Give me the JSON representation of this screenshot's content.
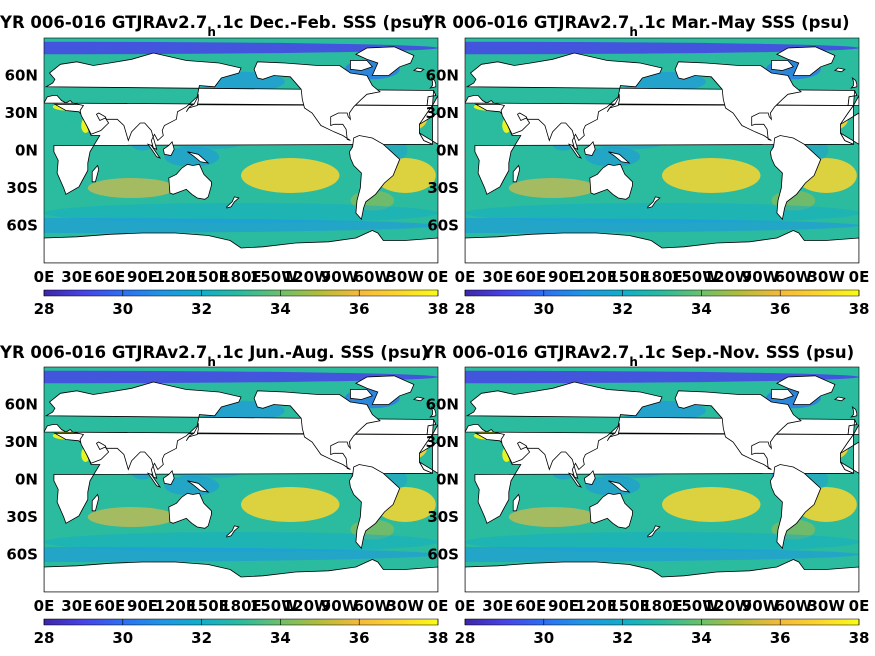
{
  "chart_data": [
    {
      "type": "heatmap",
      "variable": "SSS",
      "title_pre": "YR 006-016 GTJRAv2.7",
      "title_sub": "h",
      "title_post": ".1c Dec.-Feb. SSS (psu)",
      "lon_ticks": [
        "0E",
        "30E",
        "60E",
        "90E",
        "120E",
        "150E",
        "180E",
        "150W",
        "120W",
        "90W",
        "60W",
        "30W",
        "0E"
      ],
      "lat_ticks": [
        "60N",
        "30N",
        "0N",
        "30S",
        "60S"
      ],
      "colorbar": {
        "ticks": [
          "28",
          "30",
          "32",
          "34",
          "36",
          "38"
        ],
        "range": [
          28,
          38
        ]
      }
    },
    {
      "type": "heatmap",
      "variable": "SSS",
      "title_pre": "YR 006-016 GTJRAv2.7",
      "title_sub": "h",
      "title_post": ".1c Mar.-May SSS (psu)",
      "lon_ticks": [
        "0E",
        "30E",
        "60E",
        "90E",
        "120E",
        "150E",
        "180E",
        "150W",
        "120W",
        "90W",
        "60W",
        "30W",
        "0E"
      ],
      "lat_ticks": [
        "60N",
        "30N",
        "0N",
        "30S",
        "60S"
      ],
      "colorbar": {
        "ticks": [
          "28",
          "30",
          "32",
          "34",
          "36",
          "38"
        ],
        "range": [
          28,
          38
        ]
      }
    },
    {
      "type": "heatmap",
      "variable": "SSS",
      "title_pre": "YR 006-016 GTJRAv2.7",
      "title_sub": "h",
      "title_post": ".1c Jun.-Aug. SSS (psu)",
      "lon_ticks": [
        "0E",
        "30E",
        "60E",
        "90E",
        "120E",
        "150E",
        "180E",
        "150W",
        "120W",
        "90W",
        "60W",
        "30W",
        "0E"
      ],
      "lat_ticks": [
        "60N",
        "30N",
        "0N",
        "30S",
        "60S"
      ],
      "colorbar": {
        "ticks": [
          "28",
          "30",
          "32",
          "34",
          "36",
          "38"
        ],
        "range": [
          28,
          38
        ]
      }
    },
    {
      "type": "heatmap",
      "variable": "SSS",
      "title_pre": "YR 006-016 GTJRAv2.7",
      "title_sub": "h",
      "title_post": ".1c Sep.-Nov. SSS (psu)",
      "lon_ticks": [
        "0E",
        "30E",
        "60E",
        "90E",
        "120E",
        "150E",
        "180E",
        "150W",
        "120W",
        "90W",
        "60W",
        "30W",
        "0E"
      ],
      "lat_ticks": [
        "60N",
        "30N",
        "0N",
        "30S",
        "60S"
      ],
      "colorbar": {
        "ticks": [
          "28",
          "30",
          "32",
          "34",
          "36",
          "38"
        ],
        "range": [
          28,
          38
        ]
      }
    }
  ],
  "colors": {
    "colormap": [
      "#3e26a8",
      "#4743e6",
      "#2d6ff4",
      "#1e96e5",
      "#11aec9",
      "#2bbb9e",
      "#6cc06a",
      "#b4bc3a",
      "#f5ba3a",
      "#fbd52d",
      "#f9fb15"
    ],
    "land": "#ffffff",
    "background": "#ffffff"
  }
}
